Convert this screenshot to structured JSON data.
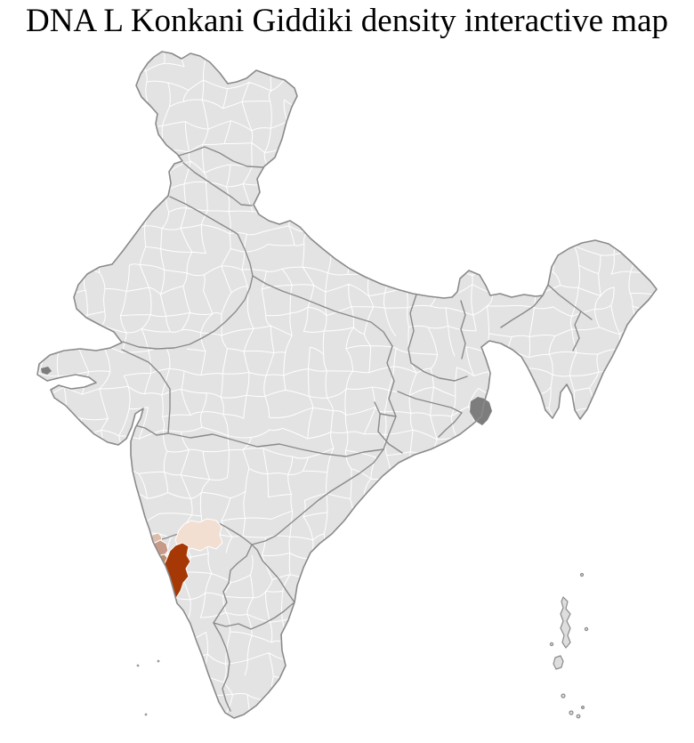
{
  "title": "DNA L Konkani Giddiki density interactive map",
  "map": {
    "region": "India",
    "kind": "district-choropleth",
    "background_color": "#ffffff",
    "base_fill": "#e3e3e3",
    "district_border_color": "#ffffff",
    "state_border_color": "#8a8a8a",
    "dark_patch_color": "#7d7d7d",
    "island_fill": "#dedede",
    "highlights": [
      {
        "id": "belgaum-area",
        "level": "low",
        "color": "#f3ded2"
      },
      {
        "id": "coastal-sliver",
        "level": "very-low",
        "color": "#ddbca9"
      },
      {
        "id": "goa-north",
        "level": "medium",
        "color": "#c79a88"
      },
      {
        "id": "goa-south",
        "level": "medium",
        "color": "#bf8c70"
      },
      {
        "id": "uttara-kannada",
        "level": "high",
        "color": "#a63805"
      }
    ]
  }
}
